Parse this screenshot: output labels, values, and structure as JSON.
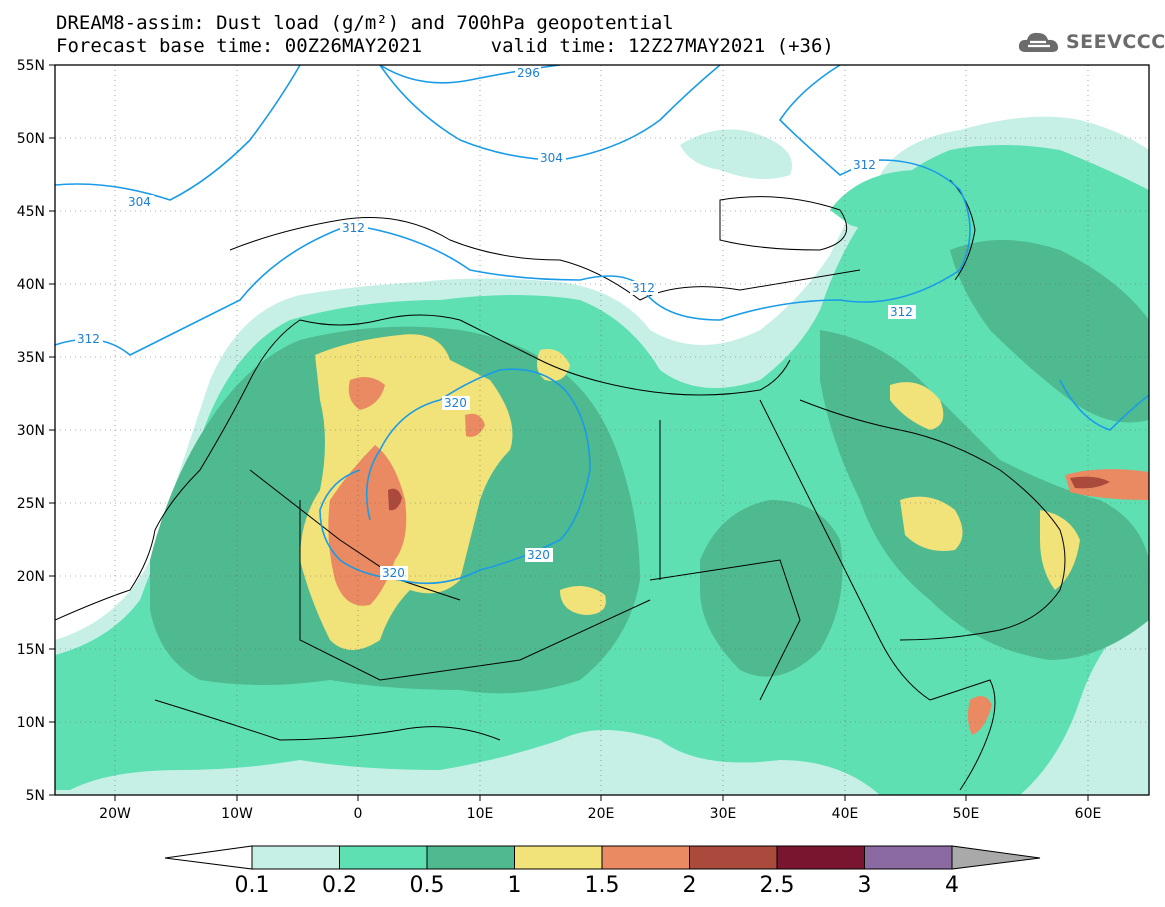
{
  "header": {
    "title_line1": "DREAM8-assim: Dust load (g/m²) and 700hPa geopotential",
    "title_line2": "Forecast base time: 00Z26MAY2021      valid time: 12Z27MAY2021 (+36)",
    "brand": "SEEVCCC",
    "brand_icon": "cloud-icon"
  },
  "axes": {
    "lat_labels": [
      "55N",
      "50N",
      "45N",
      "40N",
      "35N",
      "30N",
      "25N",
      "20N",
      "15N",
      "10N",
      "5N"
    ],
    "lon_labels": [
      "20W",
      "10W",
      "0",
      "10E",
      "20E",
      "30E",
      "40E",
      "50E",
      "60E"
    ]
  },
  "contours": {
    "labels": [
      "296",
      "304",
      "304",
      "312",
      "312",
      "312",
      "312",
      "312",
      "320",
      "320",
      "320"
    ]
  },
  "colorbar": {
    "ticks": [
      "0.1",
      "0.2",
      "0.5",
      "1",
      "1.5",
      "2",
      "2.5",
      "3",
      "4"
    ],
    "colors": [
      "#c6f0e6",
      "#5ee0b3",
      "#4fb98f",
      "#f2e27a",
      "#e98a62",
      "#a94a3c",
      "#7a1530",
      "#8a6aa0"
    ],
    "below_color": "#ffffff",
    "above_color": "#a9a9a9"
  },
  "palette": {
    "contour_line": "#1a9be8",
    "contour_text": "#1a7fd4",
    "land_outline": "#000000"
  }
}
